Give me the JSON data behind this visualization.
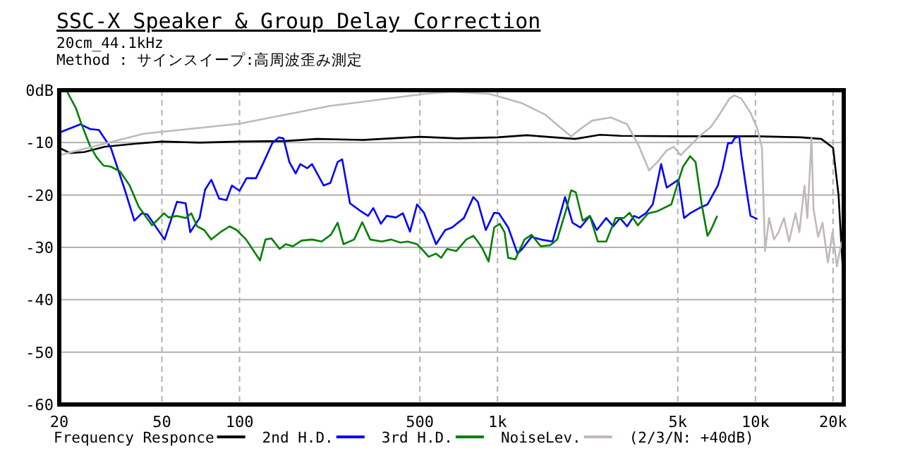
{
  "chart_data": {
    "type": "line",
    "title": "SSC-X Speaker & Group Delay Correction",
    "subtitle": "20cm_44.1kHz\nMethod : サインスイープ:高周波歪み測定",
    "log": "x",
    "xlim": [
      20,
      22000
    ],
    "ylim": [
      -60,
      0
    ],
    "xticks": [
      20,
      50,
      100,
      500,
      {
        "value": 1000,
        "label": "1k"
      },
      {
        "value": 5000,
        "label": "5k"
      },
      {
        "value": 10000,
        "label": "10k"
      },
      {
        "value": 20000,
        "label": "20k"
      }
    ],
    "yticks": [
      {
        "value": 0,
        "label": "0dB"
      },
      -10,
      -20,
      -30,
      -40,
      -50,
      -60
    ],
    "grid": true,
    "legend": "bottom",
    "line_style": "solid",
    "annotations": [
      "(2/3/N: +40dB)"
    ],
    "series": [
      {
        "name": "Frequency Responce",
        "color": "#000000",
        "x": [
          20,
          22,
          25,
          30,
          40,
          50,
          70,
          100,
          150,
          200,
          300,
          500,
          700,
          1000,
          1300,
          2000,
          2500,
          3000,
          5000,
          7000,
          10000,
          15000,
          18000,
          20000,
          21000,
          21800
        ],
        "values": [
          -11,
          -12,
          -11.8,
          -10.8,
          -10.2,
          -9.8,
          -10,
          -9.8,
          -9.7,
          -9.3,
          -9.5,
          -8.9,
          -9.2,
          -9,
          -8.6,
          -9.3,
          -8.5,
          -8.7,
          -8.8,
          -8.8,
          -8.8,
          -9,
          -9.3,
          -11,
          -20,
          -34
        ]
      },
      {
        "name": "2nd H.D.",
        "color": "#0000ff",
        "x": [
          20,
          24.2,
          26.3,
          28.5,
          31.7,
          35.9,
          39.1,
          41.8,
          43.9,
          51.2,
          57.2,
          61.8,
          64.4,
          70,
          73.5,
          77.7,
          83.4,
          89,
          93.4,
          100,
          106.5,
          115.8,
          123,
          134,
          142,
          148,
          156,
          165,
          172,
          183,
          191,
          212,
          225,
          240,
          250,
          268,
          295,
          315,
          330,
          353,
          372,
          404,
          430,
          458,
          488,
          520,
          578,
          627,
          667,
          741,
          806,
          839,
          901,
          971,
          1013,
          1100,
          1196,
          1247,
          1355,
          1472,
          1634,
          1828,
          1954,
          2097,
          2280,
          2427,
          2640,
          2810,
          2987,
          3180,
          3385,
          3528,
          3758,
          4000,
          4310,
          4530,
          4820,
          5030,
          5290,
          5580,
          6060,
          6520,
          7150,
          7460,
          7830,
          8100,
          8290,
          8650,
          8820,
          9260,
          9570,
          10180
        ],
        "values": [
          -8.1,
          -6.5,
          -7.4,
          -7.6,
          -11,
          -19,
          -24.9,
          -23.5,
          -23.7,
          -28.5,
          -21.3,
          -21.6,
          -27.1,
          -24.4,
          -19,
          -17.1,
          -20.7,
          -21,
          -18.2,
          -19.2,
          -16.8,
          -16.8,
          -14.1,
          -10.1,
          -9,
          -9.2,
          -13.7,
          -15.9,
          -14.1,
          -14.9,
          -14.1,
          -18.2,
          -17.7,
          -13.7,
          -13.2,
          -21.6,
          -23.1,
          -24,
          -22.5,
          -25.5,
          -24,
          -24.3,
          -23.5,
          -27,
          -21.8,
          -23.5,
          -29.4,
          -26.7,
          -26.2,
          -24.4,
          -20.4,
          -21.3,
          -26.7,
          -23.4,
          -23.5,
          -26.2,
          -31.2,
          -30.3,
          -28,
          -28.5,
          -28.9,
          -20.4,
          -25.3,
          -26.2,
          -24,
          -26.7,
          -24.4,
          -26,
          -24.4,
          -26,
          -24,
          -24.4,
          -23.5,
          -21.8,
          -14.1,
          -18.6,
          -17.7,
          -17.1,
          -24.4,
          -23.5,
          -22.5,
          -21.8,
          -18.2,
          -15,
          -10.1,
          -10.1,
          -9.2,
          -8.8,
          -12.4,
          -19.5,
          -24,
          -24.6
        ]
      },
      {
        "name": "3rd H.D.",
        "color": "#008000",
        "x": [
          21.3,
          23.2,
          24.4,
          26.3,
          27.9,
          29.7,
          31.7,
          34.4,
          37.5,
          40.6,
          45.8,
          51,
          53.1,
          57.2,
          61.8,
          65,
          68.5,
          73,
          77.7,
          84.3,
          91.5,
          97.5,
          106,
          120,
          126,
          133,
          143,
          151,
          161,
          174,
          191,
          208,
          226,
          240,
          253,
          278,
          299,
          321,
          356,
          387,
          420,
          448,
          488,
          508,
          541,
          578,
          605,
          638,
          693,
          757,
          806,
          839,
          876,
          924,
          971,
          1021,
          1065,
          1100,
          1172,
          1273,
          1355,
          1472,
          1601,
          1704,
          1850,
          1930,
          2012,
          2140,
          2280,
          2450,
          2640,
          2870,
          3090,
          3250,
          3500,
          3840,
          4170,
          4720,
          5030,
          5240,
          5580,
          5860,
          6190,
          6520,
          6720,
          7110
        ],
        "values": [
          0,
          -3.4,
          -6.5,
          -10.6,
          -12.8,
          -14.4,
          -14.6,
          -15.5,
          -18.2,
          -22.2,
          -25.8,
          -23.5,
          -24.3,
          -24,
          -24.4,
          -23.5,
          -26,
          -26.7,
          -28.5,
          -27.1,
          -26,
          -26.7,
          -28.5,
          -32.5,
          -28.5,
          -28.3,
          -30.3,
          -29.4,
          -29.8,
          -28.7,
          -28.5,
          -28.9,
          -27.6,
          -25.3,
          -29.4,
          -28.5,
          -25.2,
          -28.5,
          -28.9,
          -28.5,
          -29.1,
          -28.9,
          -29.4,
          -30.3,
          -31.8,
          -31.2,
          -32,
          -30.3,
          -30.7,
          -28.5,
          -27.8,
          -28.9,
          -30.3,
          -32.7,
          -26.2,
          -25.5,
          -27.1,
          -32,
          -32.3,
          -28.5,
          -27.6,
          -29.8,
          -29.6,
          -28.5,
          -22.7,
          -19.1,
          -19.5,
          -24.9,
          -24,
          -28.9,
          -28.9,
          -24.4,
          -24.4,
          -23.4,
          -25.8,
          -23.5,
          -23.1,
          -21.8,
          -17.3,
          -14.6,
          -12.6,
          -13.7,
          -21.8,
          -27.8,
          -26.7,
          -24
        ]
      },
      {
        "name": "NoiseLev.",
        "color": "#c0b8bc",
        "x": [
          20,
          42.5,
          100,
          225,
          520,
          667,
          932,
          1247,
          1536,
          1740,
          1930,
          2097,
          2330,
          2750,
          3180,
          3530,
          3870,
          4170,
          4530,
          4820,
          5130,
          5580,
          6060,
          6720,
          7330,
          7930,
          8290,
          8820,
          9570,
          10180,
          10600,
          10740,
          10900,
          11300,
          11800,
          12300,
          12900,
          13500,
          14300,
          14800,
          15500,
          15900,
          16500,
          16800,
          17500,
          18200,
          19100,
          19900,
          20700,
          21600
        ],
        "values": [
          -12.4,
          -8.3,
          -6.4,
          -3,
          -0.7,
          -0.3,
          -0.7,
          -2.5,
          -4.7,
          -7,
          -8.8,
          -7.4,
          -5.8,
          -5.2,
          -6.5,
          -10.6,
          -15.3,
          -13.7,
          -11.5,
          -10.8,
          -12.4,
          -10.6,
          -8.8,
          -7,
          -4.3,
          -1.6,
          -1,
          -1.6,
          -4.3,
          -7.4,
          -11,
          -20.9,
          -30.7,
          -24.4,
          -28.5,
          -27.1,
          -24.4,
          -28.9,
          -23.5,
          -27.1,
          -18.2,
          -24.4,
          -9.2,
          -22.7,
          -28,
          -25.3,
          -32.9,
          -27.1,
          -33.6,
          -28.9
        ]
      }
    ]
  }
}
